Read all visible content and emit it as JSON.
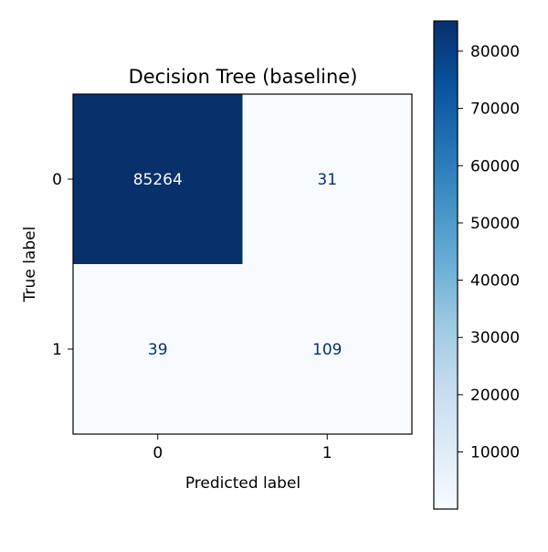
{
  "chart_data": {
    "type": "heatmap",
    "title": "Decision Tree (baseline)",
    "xlabel": "Predicted label",
    "ylabel": "True label",
    "x_categories": [
      "0",
      "1"
    ],
    "y_categories": [
      "0",
      "1"
    ],
    "values": [
      [
        85264,
        31
      ],
      [
        39,
        109
      ]
    ],
    "cell_labels": [
      [
        "85264",
        "31"
      ],
      [
        "39",
        "109"
      ]
    ],
    "colormap": "Blues",
    "colorbar": {
      "range": [
        31,
        85264
      ],
      "ticks": [
        10000,
        20000,
        30000,
        40000,
        50000,
        60000,
        70000,
        80000
      ],
      "tick_labels": [
        "10000",
        "20000",
        "30000",
        "40000",
        "50000",
        "60000",
        "70000",
        "80000"
      ]
    },
    "grid": false,
    "colors": {
      "cmap_low": "#f7fbff",
      "cmap_high": "#08306b",
      "text_on_dark": "#f7fbff",
      "text_on_light": "#08306b"
    }
  }
}
